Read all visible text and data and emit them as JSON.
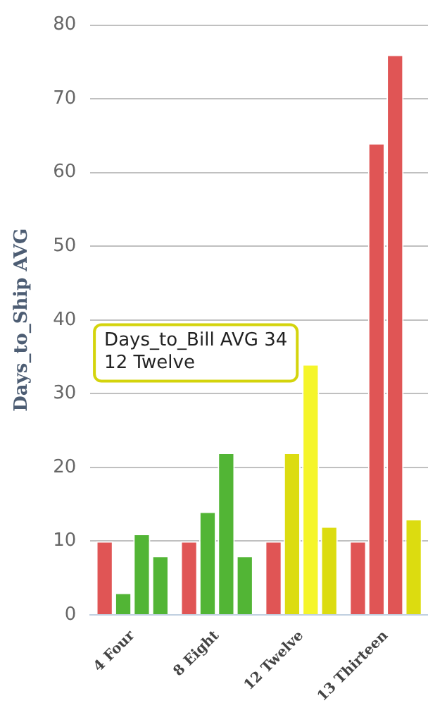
{
  "chart_data": {
    "type": "bar",
    "ylabel": "Days_to_Ship AVG",
    "categories": [
      "4 Four",
      "8 Eight",
      "12 Twelve",
      "13 Thirteen"
    ],
    "series": [
      {
        "colors": [
          "#e05555",
          "#e05555",
          "#e05555",
          "#e05555"
        ],
        "values": [
          10,
          10,
          10,
          10
        ]
      },
      {
        "colors": [
          "#52b535",
          "#52b535",
          "#dcdc10",
          "#e05555"
        ],
        "values": [
          3,
          14,
          22,
          64
        ]
      },
      {
        "colors": [
          "#52b535",
          "#52b535",
          "#f5f52a",
          "#e05555"
        ],
        "values": [
          11,
          22,
          34,
          76
        ]
      },
      {
        "colors": [
          "#52b535",
          "#52b535",
          "#dcdc10",
          "#dcdc10"
        ],
        "values": [
          8,
          8,
          12,
          13
        ]
      }
    ],
    "ylim": [
      0,
      80
    ],
    "yticks": [
      0,
      10,
      20,
      30,
      40,
      50,
      60,
      70,
      80
    ],
    "grid": "y",
    "legend": false,
    "annotations": [
      {
        "text": "Days_to_Bill AVG 34\n12 Twelve",
        "x": "12 Twelve",
        "y": 34
      }
    ]
  }
}
